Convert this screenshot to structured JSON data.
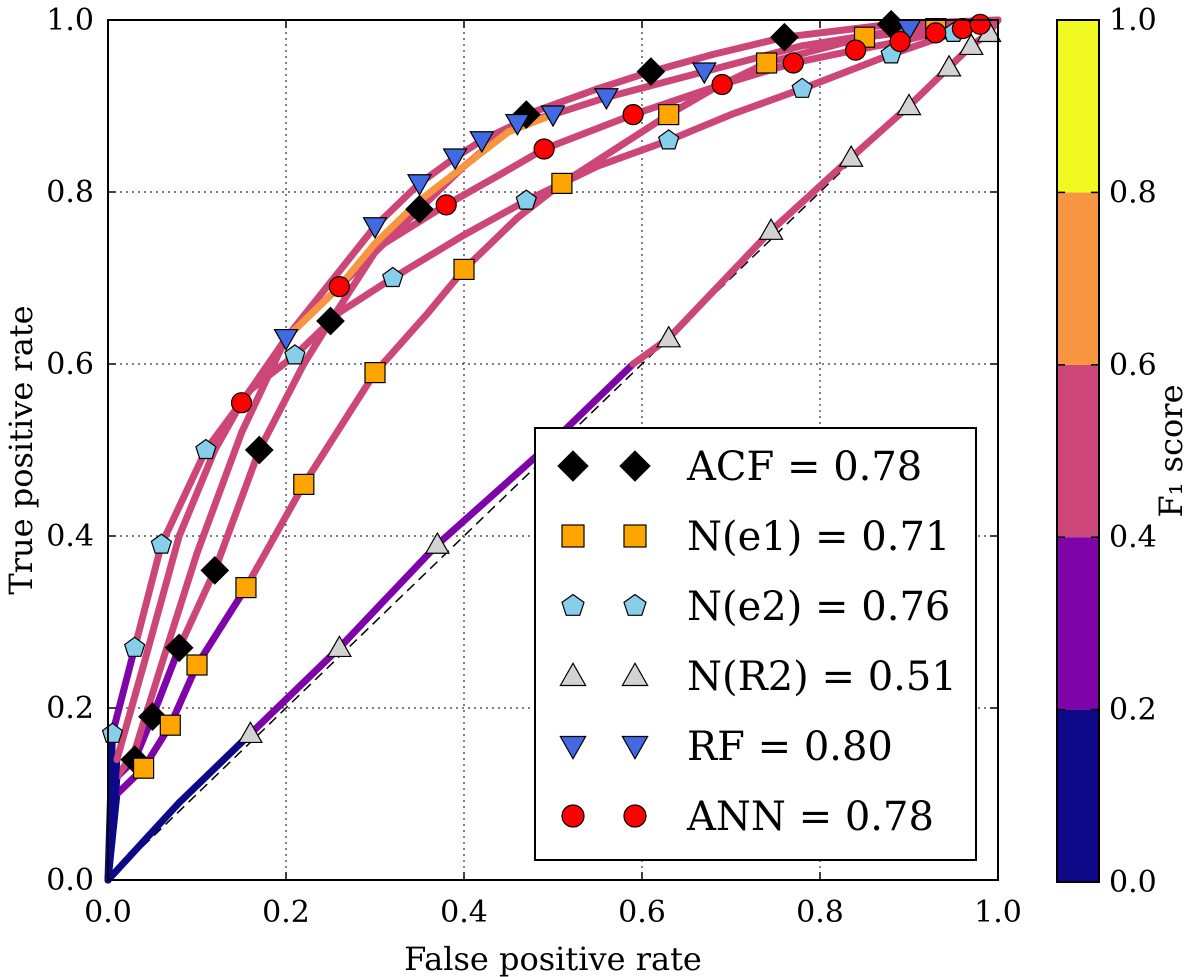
{
  "chart_data": {
    "type": "line",
    "title": "",
    "xlabel": "False positive rate",
    "ylabel": "True positive rate",
    "xlim": [
      0.0,
      1.0
    ],
    "ylim": [
      0.0,
      1.0
    ],
    "x_ticks": [
      "0.0",
      "0.2",
      "0.4",
      "0.6",
      "0.8",
      "1.0"
    ],
    "y_ticks": [
      "0.0",
      "0.2",
      "0.4",
      "0.6",
      "0.8",
      "1.0"
    ],
    "grid": true,
    "legend_position": "lower-right",
    "diagonal_reference": true,
    "colorbar": {
      "label": "F₁ score",
      "ticks": [
        "0.0",
        "0.2",
        "0.4",
        "0.6",
        "0.8",
        "1.0"
      ],
      "bands": [
        {
          "from": 0.0,
          "to": 0.2,
          "color": "#0d0887"
        },
        {
          "from": 0.2,
          "to": 0.4,
          "color": "#7e03a8"
        },
        {
          "from": 0.4,
          "to": 0.6,
          "color": "#cc4778"
        },
        {
          "from": 0.6,
          "to": 0.8,
          "color": "#f89540"
        },
        {
          "from": 0.8,
          "to": 1.0,
          "color": "#f0f921"
        }
      ]
    },
    "series": [
      {
        "name": "ACF",
        "legend": "ACF = 0.78",
        "auc": 0.78,
        "marker": "diamond",
        "marker_color": "#000000",
        "curve": [
          [
            0,
            0
          ],
          [
            0.01,
            0.12
          ],
          [
            0.03,
            0.14
          ],
          [
            0.05,
            0.19
          ],
          [
            0.08,
            0.27
          ],
          [
            0.12,
            0.36
          ],
          [
            0.17,
            0.5
          ],
          [
            0.22,
            0.6
          ],
          [
            0.25,
            0.65
          ],
          [
            0.3,
            0.73
          ],
          [
            0.35,
            0.78
          ],
          [
            0.4,
            0.83
          ],
          [
            0.47,
            0.89
          ],
          [
            0.55,
            0.92
          ],
          [
            0.61,
            0.94
          ],
          [
            0.68,
            0.96
          ],
          [
            0.76,
            0.98
          ],
          [
            0.88,
            0.995
          ],
          [
            1,
            1
          ]
        ],
        "markers": [
          [
            0.03,
            0.14
          ],
          [
            0.05,
            0.19
          ],
          [
            0.08,
            0.27
          ],
          [
            0.12,
            0.36
          ],
          [
            0.17,
            0.5
          ],
          [
            0.25,
            0.65
          ],
          [
            0.35,
            0.78
          ],
          [
            0.47,
            0.89
          ],
          [
            0.61,
            0.94
          ],
          [
            0.76,
            0.98
          ],
          [
            0.88,
            0.995
          ]
        ]
      },
      {
        "name": "N(e1)",
        "legend": "N(e1) = 0.71",
        "auc": 0.71,
        "marker": "square",
        "marker_color": "#ffa500",
        "curve": [
          [
            0,
            0
          ],
          [
            0.01,
            0.1
          ],
          [
            0.04,
            0.13
          ],
          [
            0.07,
            0.18
          ],
          [
            0.1,
            0.25
          ],
          [
            0.155,
            0.34
          ],
          [
            0.22,
            0.46
          ],
          [
            0.3,
            0.59
          ],
          [
            0.36,
            0.66
          ],
          [
            0.4,
            0.71
          ],
          [
            0.46,
            0.77
          ],
          [
            0.51,
            0.81
          ],
          [
            0.57,
            0.85
          ],
          [
            0.63,
            0.89
          ],
          [
            0.68,
            0.92
          ],
          [
            0.74,
            0.95
          ],
          [
            0.85,
            0.98
          ],
          [
            0.93,
            0.99
          ],
          [
            1,
            1
          ]
        ],
        "markers": [
          [
            0.04,
            0.13
          ],
          [
            0.07,
            0.18
          ],
          [
            0.1,
            0.25
          ],
          [
            0.155,
            0.34
          ],
          [
            0.22,
            0.46
          ],
          [
            0.3,
            0.59
          ],
          [
            0.4,
            0.71
          ],
          [
            0.51,
            0.81
          ],
          [
            0.63,
            0.89
          ],
          [
            0.74,
            0.95
          ],
          [
            0.85,
            0.98
          ],
          [
            0.93,
            0.99
          ]
        ]
      },
      {
        "name": "N(e2)",
        "legend": "N(e2) = 0.76",
        "auc": 0.76,
        "marker": "pentagon",
        "marker_color": "#87ceeb",
        "curve": [
          [
            0,
            0
          ],
          [
            0.005,
            0.17
          ],
          [
            0.03,
            0.27
          ],
          [
            0.06,
            0.39
          ],
          [
            0.11,
            0.5
          ],
          [
            0.16,
            0.57
          ],
          [
            0.21,
            0.61
          ],
          [
            0.26,
            0.66
          ],
          [
            0.32,
            0.7
          ],
          [
            0.4,
            0.75
          ],
          [
            0.47,
            0.79
          ],
          [
            0.55,
            0.83
          ],
          [
            0.63,
            0.86
          ],
          [
            0.7,
            0.89
          ],
          [
            0.78,
            0.92
          ],
          [
            0.88,
            0.96
          ],
          [
            0.95,
            0.985
          ],
          [
            1,
            1
          ]
        ],
        "markers": [
          [
            0.005,
            0.17
          ],
          [
            0.03,
            0.27
          ],
          [
            0.06,
            0.39
          ],
          [
            0.11,
            0.5
          ],
          [
            0.21,
            0.61
          ],
          [
            0.32,
            0.7
          ],
          [
            0.47,
            0.79
          ],
          [
            0.63,
            0.86
          ],
          [
            0.78,
            0.92
          ],
          [
            0.88,
            0.96
          ],
          [
            0.95,
            0.985
          ]
        ]
      },
      {
        "name": "N(R2)",
        "legend": "N(R2) = 0.51",
        "auc": 0.51,
        "marker": "triangle-up",
        "marker_color": "#d3d3d3",
        "curve": [
          [
            0,
            0
          ],
          [
            0.08,
            0.09
          ],
          [
            0.16,
            0.17
          ],
          [
            0.26,
            0.27
          ],
          [
            0.37,
            0.39
          ],
          [
            0.5,
            0.51
          ],
          [
            0.59,
            0.6
          ],
          [
            0.63,
            0.63
          ],
          [
            0.745,
            0.755
          ],
          [
            0.835,
            0.84
          ],
          [
            0.9,
            0.9
          ],
          [
            0.945,
            0.945
          ],
          [
            0.97,
            0.97
          ],
          [
            0.99,
            0.985
          ],
          [
            1,
            1
          ]
        ],
        "markers": [
          [
            0.16,
            0.17
          ],
          [
            0.26,
            0.27
          ],
          [
            0.37,
            0.39
          ],
          [
            0.63,
            0.63
          ],
          [
            0.745,
            0.755
          ],
          [
            0.835,
            0.84
          ],
          [
            0.9,
            0.9
          ],
          [
            0.945,
            0.945
          ],
          [
            0.97,
            0.97
          ],
          [
            0.99,
            0.985
          ]
        ]
      },
      {
        "name": "RF",
        "legend": "RF = 0.80",
        "auc": 0.8,
        "marker": "triangle-down",
        "marker_color": "#4169e1",
        "curve": [
          [
            0,
            0
          ],
          [
            0.01,
            0.12
          ],
          [
            0.03,
            0.15
          ],
          [
            0.06,
            0.25
          ],
          [
            0.1,
            0.38
          ],
          [
            0.15,
            0.52
          ],
          [
            0.2,
            0.63
          ],
          [
            0.3,
            0.76
          ],
          [
            0.35,
            0.81
          ],
          [
            0.39,
            0.84
          ],
          [
            0.42,
            0.86
          ],
          [
            0.46,
            0.88
          ],
          [
            0.5,
            0.89
          ],
          [
            0.56,
            0.91
          ],
          [
            0.67,
            0.94
          ],
          [
            0.78,
            0.97
          ],
          [
            0.9,
            0.99
          ],
          [
            1,
            1
          ]
        ],
        "markers": [
          [
            0.2,
            0.63
          ],
          [
            0.3,
            0.76
          ],
          [
            0.35,
            0.81
          ],
          [
            0.39,
            0.84
          ],
          [
            0.42,
            0.86
          ],
          [
            0.46,
            0.88
          ],
          [
            0.5,
            0.89
          ],
          [
            0.56,
            0.91
          ],
          [
            0.67,
            0.94
          ],
          [
            0.9,
            0.99
          ]
        ]
      },
      {
        "name": "ANN",
        "legend": "ANN = 0.78",
        "auc": 0.78,
        "marker": "circle",
        "marker_color": "#ff0000",
        "curve": [
          [
            0,
            0
          ],
          [
            0.01,
            0.14
          ],
          [
            0.04,
            0.25
          ],
          [
            0.08,
            0.4
          ],
          [
            0.12,
            0.5
          ],
          [
            0.15,
            0.555
          ],
          [
            0.2,
            0.63
          ],
          [
            0.26,
            0.69
          ],
          [
            0.31,
            0.74
          ],
          [
            0.38,
            0.785
          ],
          [
            0.44,
            0.82
          ],
          [
            0.49,
            0.85
          ],
          [
            0.59,
            0.89
          ],
          [
            0.69,
            0.925
          ],
          [
            0.77,
            0.95
          ],
          [
            0.84,
            0.965
          ],
          [
            0.89,
            0.975
          ],
          [
            0.93,
            0.985
          ],
          [
            0.96,
            0.99
          ],
          [
            1,
            1
          ]
        ],
        "markers": [
          [
            0.15,
            0.555
          ],
          [
            0.26,
            0.69
          ],
          [
            0.38,
            0.785
          ],
          [
            0.49,
            0.85
          ],
          [
            0.59,
            0.89
          ],
          [
            0.69,
            0.925
          ],
          [
            0.77,
            0.95
          ],
          [
            0.84,
            0.965
          ],
          [
            0.89,
            0.975
          ],
          [
            0.93,
            0.985
          ],
          [
            0.96,
            0.99
          ],
          [
            0.98,
            0.995
          ]
        ]
      }
    ],
    "orange_segment": [
      [
        0.2,
        0.63
      ],
      [
        0.26,
        0.69
      ],
      [
        0.3,
        0.74
      ],
      [
        0.35,
        0.79
      ],
      [
        0.4,
        0.83
      ],
      [
        0.45,
        0.87
      ],
      [
        0.5,
        0.89
      ]
    ]
  }
}
